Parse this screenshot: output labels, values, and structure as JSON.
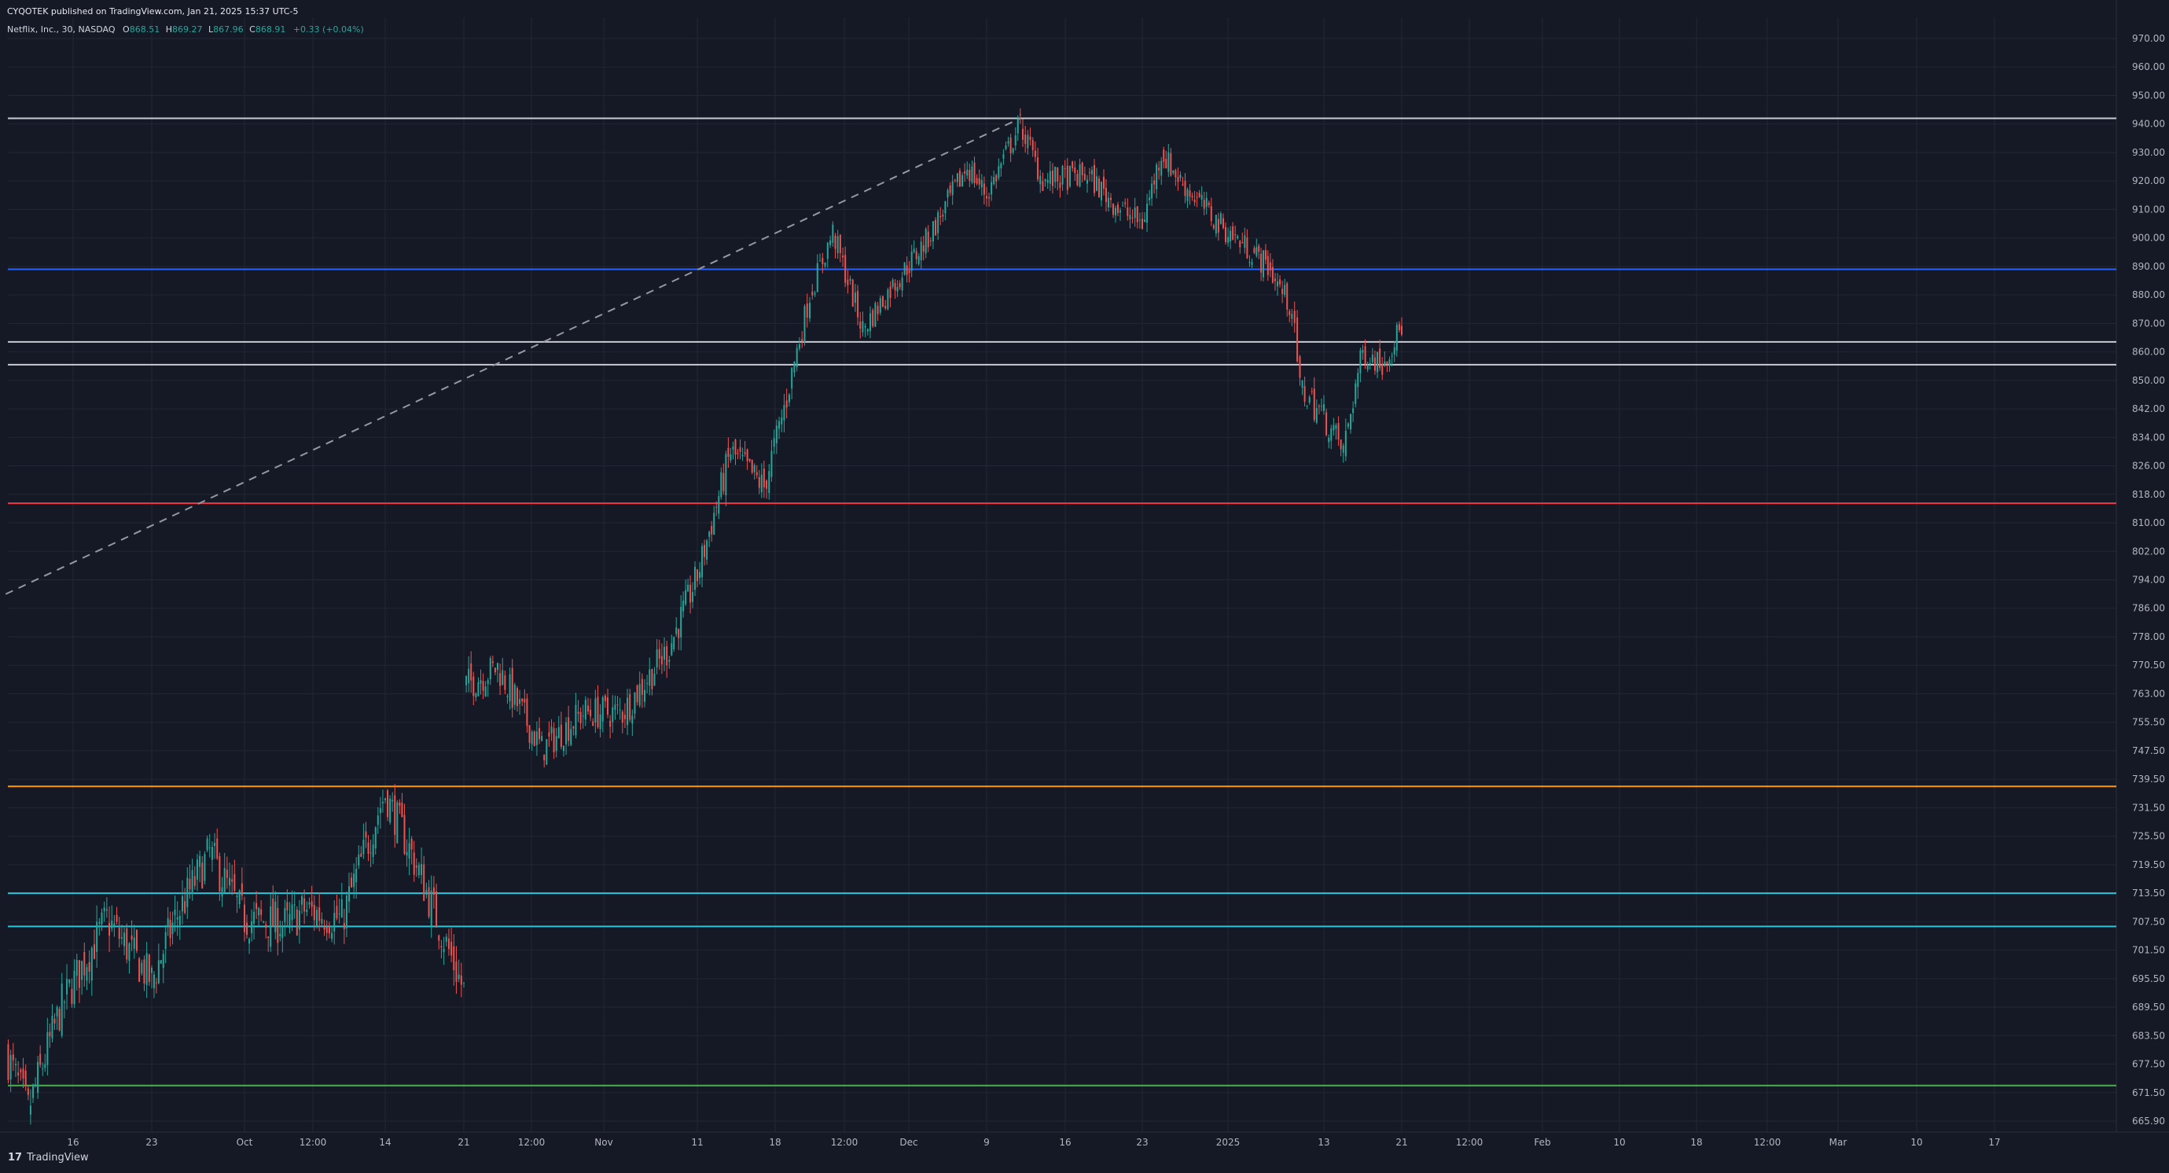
{
  "header": {
    "publisher": "CYQOTEK published on TradingView.com, Jan 21, 2025 15:37 UTC-5"
  },
  "legend": {
    "symbol": "Netflix, Inc., 30, NASDAQ",
    "open_label": "O",
    "open": "868.51",
    "high_label": "H",
    "high": "869.27",
    "low_label": "L",
    "low": "867.96",
    "close_label": "C",
    "close": "868.91",
    "change": "+0.33 (+0.04%)"
  },
  "brand": {
    "logo": "17",
    "name": "TradingView"
  },
  "colors": {
    "background": "#151925",
    "up_candle": "#26a69a",
    "down_candle": "#ef5350",
    "grid": "#232735",
    "axis_text": "#b2b5be"
  },
  "chart_data": {
    "type": "candlestick",
    "title": "Netflix, Inc., 30, NASDAQ",
    "y_axis": {
      "side": "right",
      "ticks": [
        "970.00",
        "960.00",
        "950.00",
        "940.00",
        "930.00",
        "920.00",
        "910.00",
        "900.00",
        "890.00",
        "880.00",
        "870.00",
        "860.00",
        "850.00",
        "842.00",
        "834.00",
        "826.00",
        "818.00",
        "810.00",
        "802.00",
        "794.00",
        "786.00",
        "778.00",
        "770.50",
        "763.00",
        "755.50",
        "747.50",
        "739.50",
        "731.50",
        "725.50",
        "719.50",
        "713.50",
        "707.50",
        "701.50",
        "695.50",
        "689.50",
        "683.50",
        "677.50",
        "671.50",
        "665.90"
      ],
      "range": [
        663,
        975
      ]
    },
    "x_axis": {
      "ticks": [
        {
          "label": "16",
          "date": "2024-09-16"
        },
        {
          "label": "23",
          "date": "2024-09-23"
        },
        {
          "label": "Oct",
          "date": "2024-10-01"
        },
        {
          "label": "12:00",
          "date": "2024-10-09"
        },
        {
          "label": "14",
          "date": "2024-10-14"
        },
        {
          "label": "21",
          "date": "2024-10-21"
        },
        {
          "label": "12:00",
          "date": "2024-10-25"
        },
        {
          "label": "Nov",
          "date": "2024-11-01"
        },
        {
          "label": "11",
          "date": "2024-11-11"
        },
        {
          "label": "18",
          "date": "2024-11-18"
        },
        {
          "label": "12:00",
          "date": "2024-11-24"
        },
        {
          "label": "Dec",
          "date": "2024-12-01"
        },
        {
          "label": "9",
          "date": "2024-12-09"
        },
        {
          "label": "16",
          "date": "2024-12-16"
        },
        {
          "label": "23",
          "date": "2024-12-23"
        },
        {
          "label": "2025",
          "date": "2025-01-01"
        },
        {
          "label": "13",
          "date": "2025-01-13"
        },
        {
          "label": "21",
          "date": "2025-01-21"
        },
        {
          "label": "12:00",
          "date": "2025-01-28"
        },
        {
          "label": "Feb",
          "date": "2025-02-03"
        },
        {
          "label": "10",
          "date": "2025-02-10"
        },
        {
          "label": "18",
          "date": "2025-02-18"
        },
        {
          "label": "12:00",
          "date": "2025-02-25"
        },
        {
          "label": "Mar",
          "date": "2025-03-03"
        },
        {
          "label": "10",
          "date": "2025-03-10"
        },
        {
          "label": "17",
          "date": "2025-03-17"
        }
      ]
    },
    "horizontal_levels": [
      {
        "price": 942,
        "color": "#c9cbd3"
      },
      {
        "price": 889,
        "color": "#2962ff"
      },
      {
        "price": 863.5,
        "color": "#c9cbd3"
      },
      {
        "price": 855.5,
        "color": "#c9cbd3"
      },
      {
        "price": 815.5,
        "color": "#f23645"
      },
      {
        "price": 737.5,
        "color": "#ff9800"
      },
      {
        "price": 713.5,
        "color": "#26c6da"
      },
      {
        "price": 706.5,
        "color": "#26c6da"
      },
      {
        "price": 673,
        "color": "#4caf50"
      }
    ],
    "trendline": {
      "style": "dashed",
      "color": "#9598a1",
      "from": {
        "date": "2024-09-10",
        "price": 790
      },
      "to": {
        "date": "2024-12-12",
        "price": 942
      }
    },
    "price_path": [
      {
        "date": "2024-09-10",
        "price": 680
      },
      {
        "date": "2024-09-12",
        "price": 668
      },
      {
        "date": "2024-09-15",
        "price": 690
      },
      {
        "date": "2024-09-19",
        "price": 708
      },
      {
        "date": "2024-09-23",
        "price": 695
      },
      {
        "date": "2024-09-25",
        "price": 708
      },
      {
        "date": "2024-09-28",
        "price": 722
      },
      {
        "date": "2024-10-01",
        "price": 708
      },
      {
        "date": "2024-10-06",
        "price": 707
      },
      {
        "date": "2024-10-08",
        "price": 710
      },
      {
        "date": "2024-10-11",
        "price": 708
      },
      {
        "date": "2024-10-14",
        "price": 735
      },
      {
        "date": "2024-10-17",
        "price": 718
      },
      {
        "date": "2024-10-21",
        "price": 693
      },
      {
        "date": "2024-10-21",
        "price": 765
      },
      {
        "date": "2024-10-23",
        "price": 770
      },
      {
        "date": "2024-10-26",
        "price": 748
      },
      {
        "date": "2024-10-30",
        "price": 758
      },
      {
        "date": "2024-11-03",
        "price": 758
      },
      {
        "date": "2024-11-08",
        "price": 775
      },
      {
        "date": "2024-11-11",
        "price": 795
      },
      {
        "date": "2024-11-14",
        "price": 830
      },
      {
        "date": "2024-11-17",
        "price": 820
      },
      {
        "date": "2024-11-19",
        "price": 845
      },
      {
        "date": "2024-11-21",
        "price": 880
      },
      {
        "date": "2024-11-23",
        "price": 902
      },
      {
        "date": "2024-11-26",
        "price": 868
      },
      {
        "date": "2024-11-29",
        "price": 882
      },
      {
        "date": "2024-12-03",
        "price": 900
      },
      {
        "date": "2024-12-07",
        "price": 925
      },
      {
        "date": "2024-12-09",
        "price": 915
      },
      {
        "date": "2024-12-12",
        "price": 940
      },
      {
        "date": "2024-12-14",
        "price": 920
      },
      {
        "date": "2024-12-18",
        "price": 922
      },
      {
        "date": "2024-12-21",
        "price": 910
      },
      {
        "date": "2024-12-23",
        "price": 905
      },
      {
        "date": "2024-12-25",
        "price": 930
      },
      {
        "date": "2024-12-27",
        "price": 920
      },
      {
        "date": "2024-12-31",
        "price": 905
      },
      {
        "date": "2025-01-04",
        "price": 895
      },
      {
        "date": "2025-01-06",
        "price": 890
      },
      {
        "date": "2025-01-09",
        "price": 875
      },
      {
        "date": "2025-01-10",
        "price": 848
      },
      {
        "date": "2025-01-13",
        "price": 840
      },
      {
        "date": "2025-01-15",
        "price": 830
      },
      {
        "date": "2025-01-17",
        "price": 860
      },
      {
        "date": "2025-01-19",
        "price": 856
      },
      {
        "date": "2025-01-21",
        "price": 869
      }
    ]
  }
}
